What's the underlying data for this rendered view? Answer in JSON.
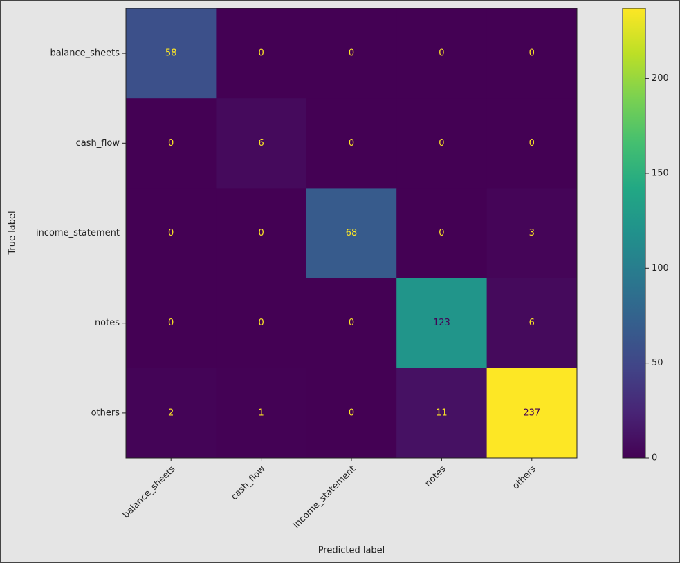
{
  "chart_data": {
    "type": "heatmap",
    "x_label": "Predicted label",
    "y_label": "True label",
    "x_categories": [
      "balance_sheets",
      "cash_flow",
      "income_statement",
      "notes",
      "others"
    ],
    "y_categories": [
      "balance_sheets",
      "cash_flow",
      "income_statement",
      "notes",
      "others"
    ],
    "values": [
      [
        58,
        0,
        0,
        0,
        0
      ],
      [
        0,
        6,
        0,
        0,
        0
      ],
      [
        0,
        0,
        68,
        0,
        3
      ],
      [
        0,
        0,
        0,
        123,
        6
      ],
      [
        2,
        1,
        0,
        11,
        237
      ]
    ],
    "colormap": "viridis",
    "clim": [
      0,
      237
    ],
    "cticks": [
      0,
      50,
      100,
      150,
      200
    ]
  }
}
